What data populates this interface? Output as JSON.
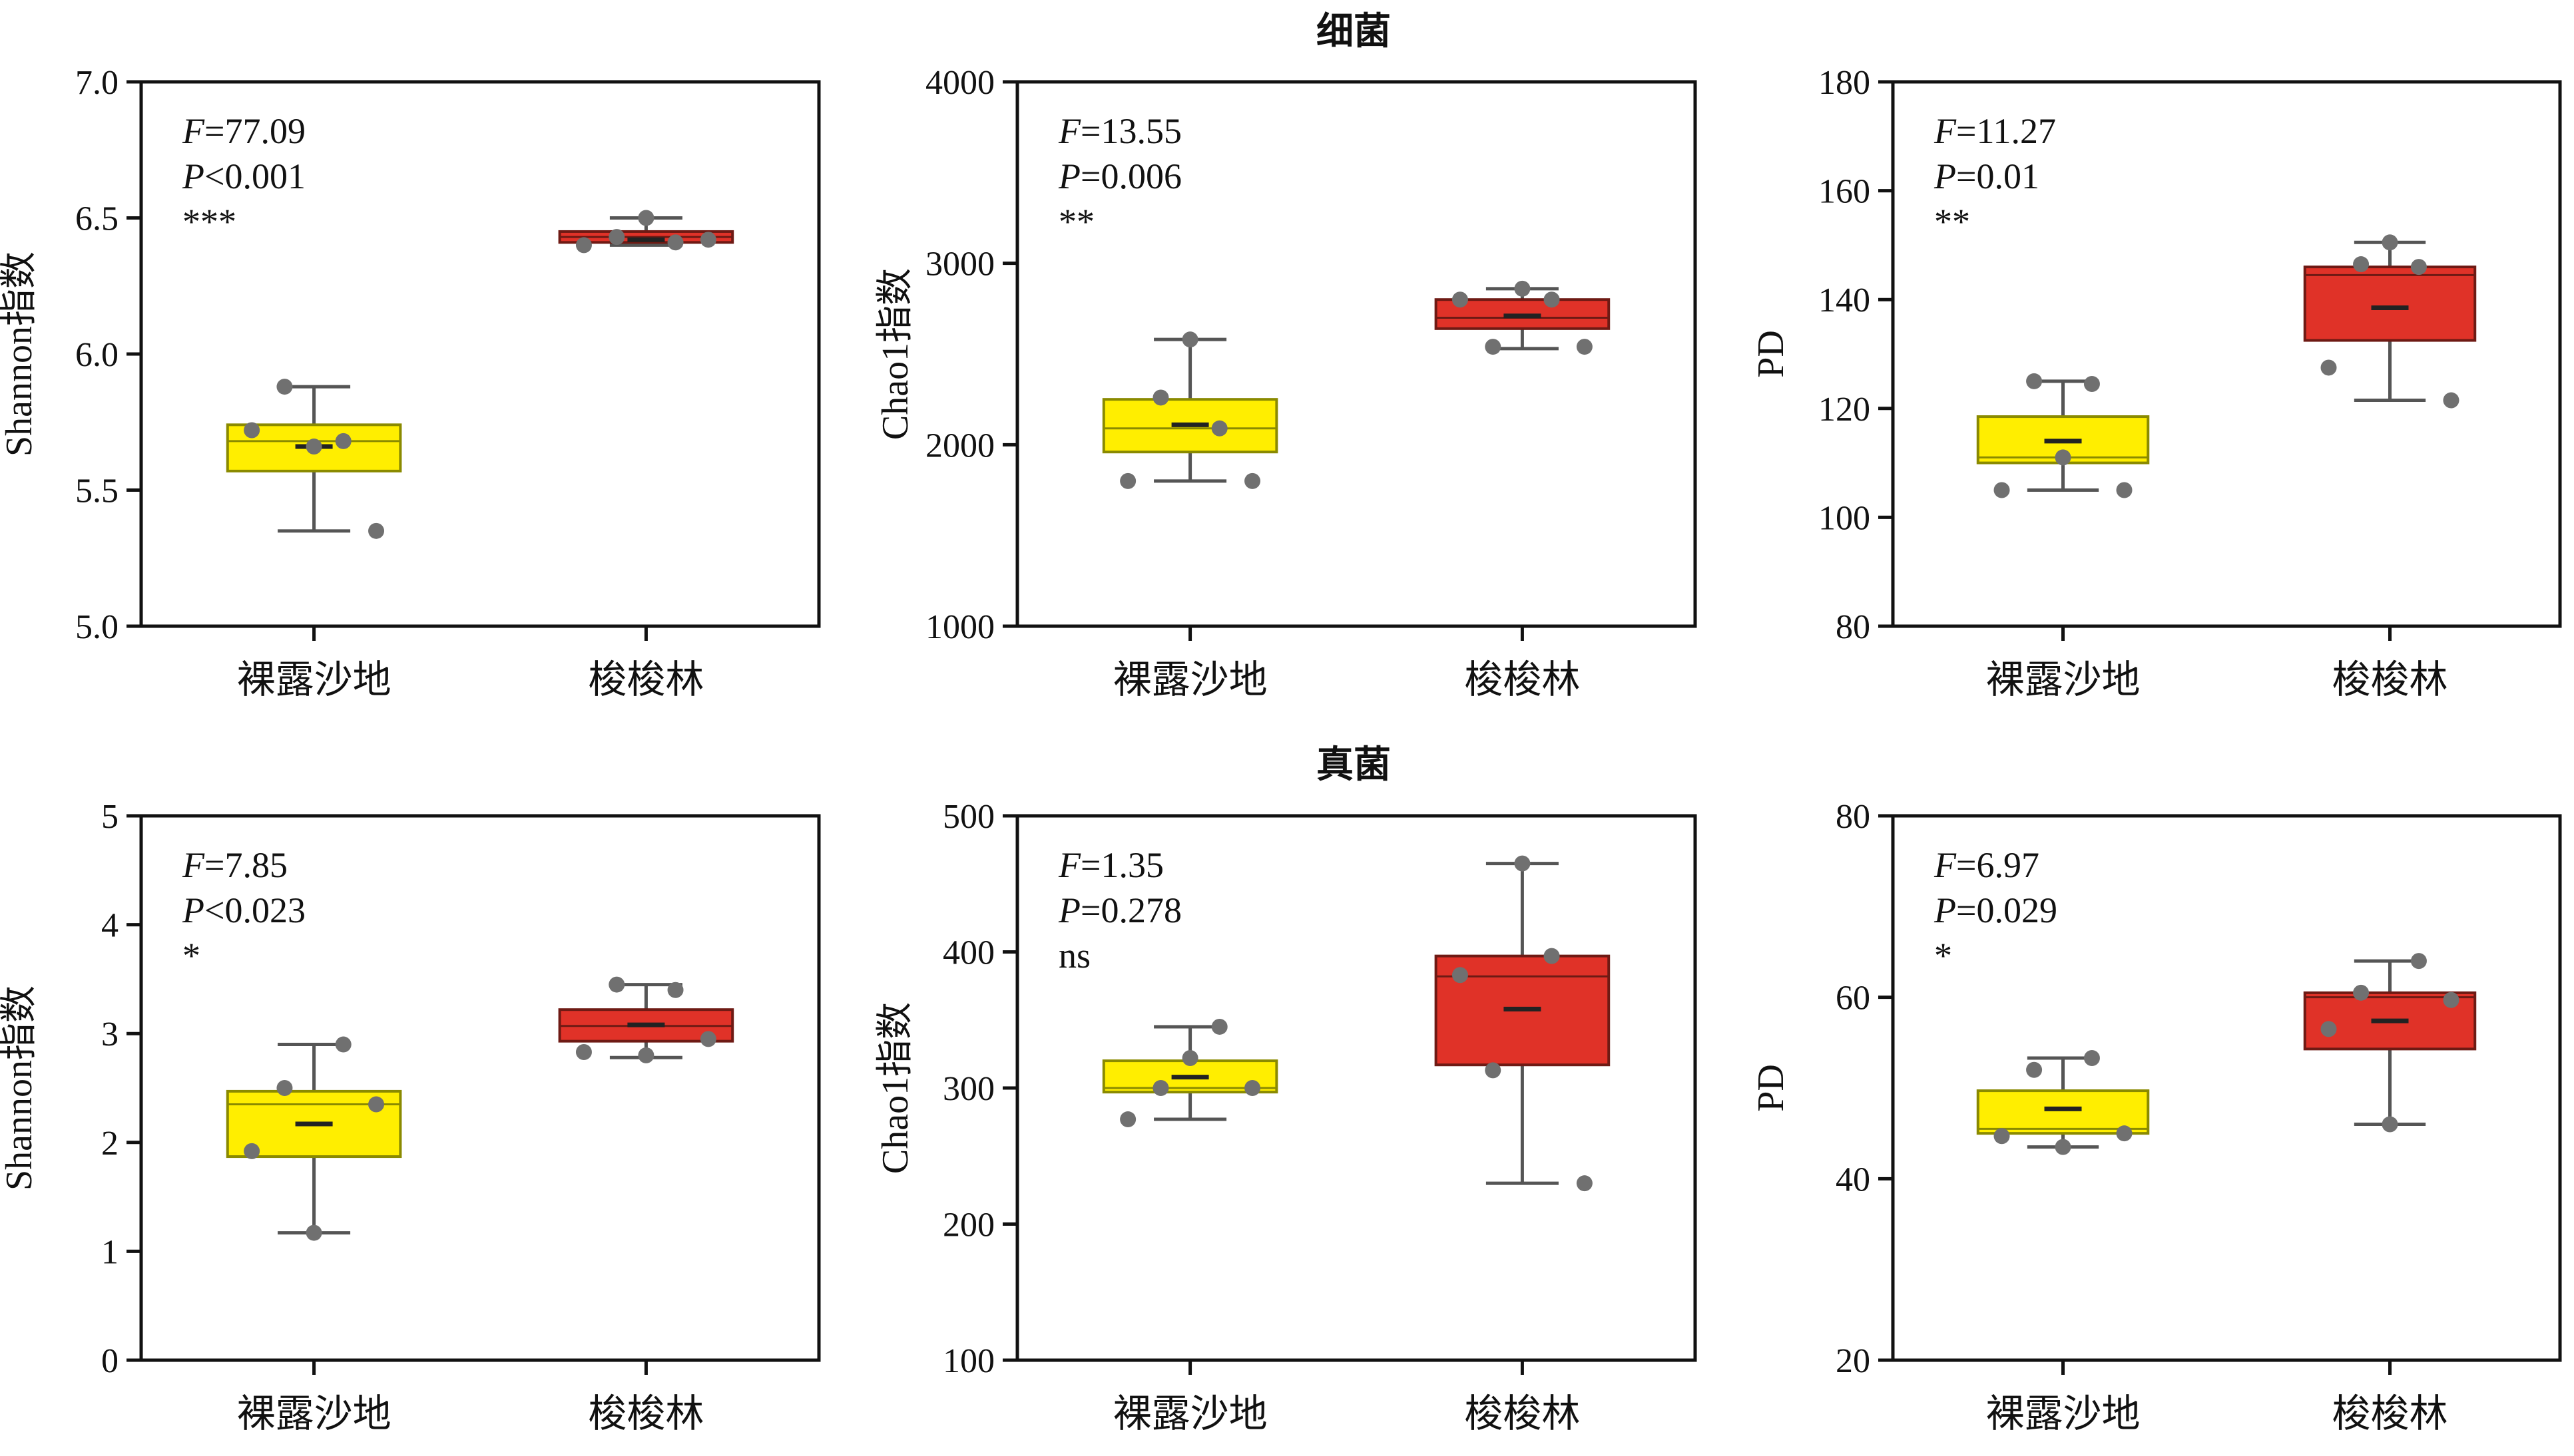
{
  "row_titles": [
    "细菌",
    "真菌"
  ],
  "colors": {
    "bare_sand_fill": "#ffee00",
    "bare_sand_stroke": "#8a8a00",
    "forest_fill": "#e03228",
    "forest_stroke": "#6e1a14",
    "whisker": "#555555",
    "point": "#707070"
  },
  "chart_data": [
    {
      "type": "box",
      "row": "细菌",
      "ylabel": "Shannon指数",
      "ylim": [
        5.0,
        7.0
      ],
      "yticks": [
        "5.0",
        "5.5",
        "6.0",
        "6.5",
        "7.0"
      ],
      "categories": [
        "裸露沙地",
        "梭梭林"
      ],
      "stats": {
        "f": "=77.09",
        "p": "<0.001",
        "sig": "***"
      },
      "boxes": [
        {
          "min": 5.35,
          "q1": 5.57,
          "median": 5.68,
          "mean": 5.66,
          "q3": 5.74,
          "max": 5.88,
          "points": [
            5.72,
            5.88,
            5.66,
            5.68,
            5.35
          ]
        },
        {
          "min": 6.4,
          "q1": 6.41,
          "median": 6.43,
          "mean": 6.42,
          "q3": 6.45,
          "max": 6.5,
          "points": [
            6.4,
            6.43,
            6.5,
            6.41,
            6.42
          ]
        }
      ]
    },
    {
      "type": "box",
      "row": "细菌",
      "ylabel": "Chao1指数",
      "ylim": [
        1000,
        4000
      ],
      "yticks": [
        "1000",
        "2000",
        "3000",
        "4000"
      ],
      "categories": [
        "裸露沙地",
        "梭梭林"
      ],
      "stats": {
        "f": "=13.55",
        "p": "=0.006",
        "sig": "**"
      },
      "boxes": [
        {
          "min": 1800,
          "q1": 1960,
          "median": 2090,
          "mean": 2110,
          "q3": 2250,
          "max": 2580,
          "points": [
            1800,
            2260,
            2580,
            2090,
            1800
          ]
        },
        {
          "min": 2530,
          "q1": 2640,
          "median": 2700,
          "mean": 2710,
          "q3": 2800,
          "max": 2860,
          "points": [
            2800,
            2540,
            2860,
            2800,
            2540
          ]
        }
      ]
    },
    {
      "type": "box",
      "row": "细菌",
      "ylabel": "PD",
      "ylim": [
        80,
        180
      ],
      "yticks": [
        "80",
        "100",
        "120",
        "140",
        "160",
        "180"
      ],
      "categories": [
        "裸露沙地",
        "梭梭林"
      ],
      "stats": {
        "f": "=11.27",
        "p": "=0.01",
        "sig": "**"
      },
      "boxes": [
        {
          "min": 105,
          "q1": 110,
          "median": 111,
          "mean": 114,
          "q3": 118.5,
          "max": 125,
          "points": [
            105,
            125,
            111,
            124.5,
            105
          ]
        },
        {
          "min": 121.5,
          "q1": 132.5,
          "median": 144.5,
          "mean": 138.5,
          "q3": 146,
          "max": 150.5,
          "points": [
            127.5,
            146.5,
            150.5,
            146,
            121.5
          ]
        }
      ]
    },
    {
      "type": "box",
      "row": "真菌",
      "ylabel": "Shannon指数",
      "ylim": [
        0,
        5
      ],
      "yticks": [
        "0",
        "1",
        "2",
        "3",
        "4",
        "5"
      ],
      "categories": [
        "裸露沙地",
        "梭梭林"
      ],
      "stats": {
        "f": "=7.85",
        "p": "<0.023",
        "sig": "*"
      },
      "boxes": [
        {
          "min": 1.17,
          "q1": 1.87,
          "median": 2.35,
          "mean": 2.17,
          "q3": 2.47,
          "max": 2.9,
          "points": [
            1.92,
            2.5,
            1.17,
            2.9,
            2.35
          ]
        },
        {
          "min": 2.78,
          "q1": 2.93,
          "median": 3.07,
          "mean": 3.08,
          "q3": 3.22,
          "max": 3.45,
          "points": [
            2.83,
            3.45,
            2.8,
            3.4,
            2.95
          ]
        }
      ]
    },
    {
      "type": "box",
      "row": "真菌",
      "ylabel": "Chao1指数",
      "ylim": [
        100,
        500
      ],
      "yticks": [
        "100",
        "200",
        "300",
        "400",
        "500"
      ],
      "categories": [
        "裸露沙地",
        "梭梭林"
      ],
      "stats": {
        "f": "=1.35",
        "p": "=0.278",
        "sig": "ns"
      },
      "boxes": [
        {
          "min": 277,
          "q1": 297,
          "median": 300,
          "mean": 308,
          "q3": 320,
          "max": 345,
          "points": [
            277,
            300,
            322,
            345,
            300
          ]
        },
        {
          "min": 230,
          "q1": 317,
          "median": 382,
          "mean": 358,
          "q3": 397,
          "max": 465,
          "points": [
            383,
            313,
            465,
            397,
            230
          ]
        }
      ]
    },
    {
      "type": "box",
      "row": "真菌",
      "ylabel": "PD",
      "ylim": [
        20,
        80
      ],
      "yticks": [
        "20",
        "40",
        "60",
        "80"
      ],
      "categories": [
        "裸露沙地",
        "梭梭林"
      ],
      "stats": {
        "f": "=6.97",
        "p": "=0.029",
        "sig": "*"
      },
      "boxes": [
        {
          "min": 43.5,
          "q1": 45,
          "median": 45.5,
          "mean": 47.7,
          "q3": 49.7,
          "max": 53.3,
          "points": [
            44.7,
            52,
            43.5,
            53.3,
            45
          ]
        },
        {
          "min": 46,
          "q1": 54.3,
          "median": 60,
          "mean": 57.4,
          "q3": 60.5,
          "max": 64,
          "points": [
            56.5,
            60.5,
            46,
            64,
            59.7
          ]
        }
      ]
    }
  ]
}
